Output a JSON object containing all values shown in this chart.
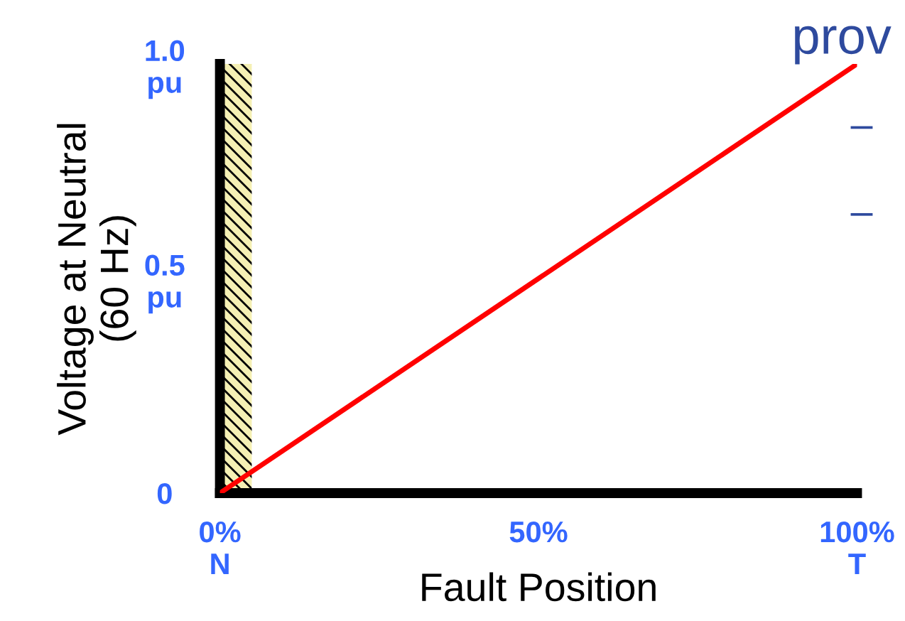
{
  "chart_data": {
    "type": "line",
    "xlabel": "Fault Position",
    "ylabel": "Voltage at Neutral\n(60 Hz)",
    "x": [
      0,
      100
    ],
    "series": [
      {
        "color": "#ff0000",
        "values": [
          0,
          1.0
        ]
      }
    ],
    "xlim": [
      0,
      100
    ],
    "ylim": [
      0,
      1.0
    ],
    "xticks": [
      {
        "value": 0,
        "label": "0%\nN"
      },
      {
        "value": 50,
        "label": "50%"
      },
      {
        "value": 100,
        "label": "100%\nT"
      }
    ],
    "yticks": [
      0,
      {
        "value": 0.5,
        "label": "0.5\npu"
      },
      {
        "value": 1.0,
        "label": "1.0\npu"
      }
    ],
    "bands": [
      {
        "axis": "x",
        "from": 0,
        "to": 5,
        "color": "#f5f0b4"
      }
    ],
    "annotations": [
      "prov",
      "–",
      "–"
    ],
    "grid": false,
    "legend": false,
    "marker": "none",
    "line_style": "solid"
  }
}
